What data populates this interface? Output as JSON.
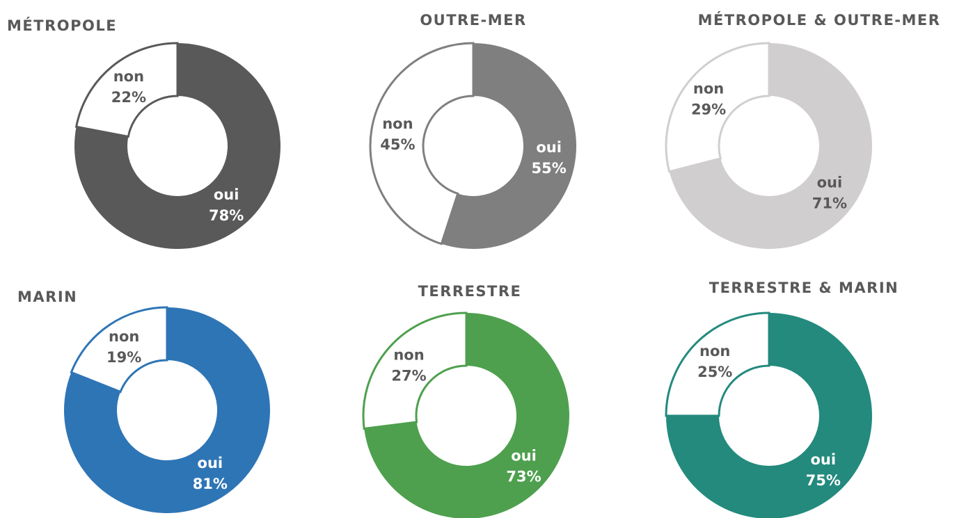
{
  "chart_data": [
    {
      "type": "donut",
      "title": "MÉTROPOLE",
      "categories": [
        "oui",
        "non"
      ],
      "values": [
        78,
        22
      ],
      "value_labels": [
        "78%",
        "22%"
      ],
      "color": "#595959"
    },
    {
      "type": "donut",
      "title": "OUTRE-MER",
      "categories": [
        "oui",
        "non"
      ],
      "values": [
        55,
        45
      ],
      "value_labels": [
        "55%",
        "45%"
      ],
      "color": "#7f7f7f"
    },
    {
      "type": "donut",
      "title": "MÉTROPOLE & OUTRE-MER",
      "categories": [
        "oui",
        "non"
      ],
      "values": [
        71,
        29
      ],
      "value_labels": [
        "71%",
        "29%"
      ],
      "color": "#d0cece"
    },
    {
      "type": "donut",
      "title": "MARIN",
      "categories": [
        "oui",
        "non"
      ],
      "values": [
        81,
        19
      ],
      "value_labels": [
        "81%",
        "19%"
      ],
      "color": "#2e75b6"
    },
    {
      "type": "donut",
      "title": "TERRESTRE",
      "categories": [
        "oui",
        "non"
      ],
      "values": [
        73,
        27
      ],
      "value_labels": [
        "73%",
        "27%"
      ],
      "color": "#4ea04e"
    },
    {
      "type": "donut",
      "title": "TERRESTRE & MARIN",
      "categories": [
        "oui",
        "non"
      ],
      "values": [
        75,
        25
      ],
      "value_labels": [
        "75%",
        "25%"
      ],
      "color": "#238a7d"
    }
  ]
}
